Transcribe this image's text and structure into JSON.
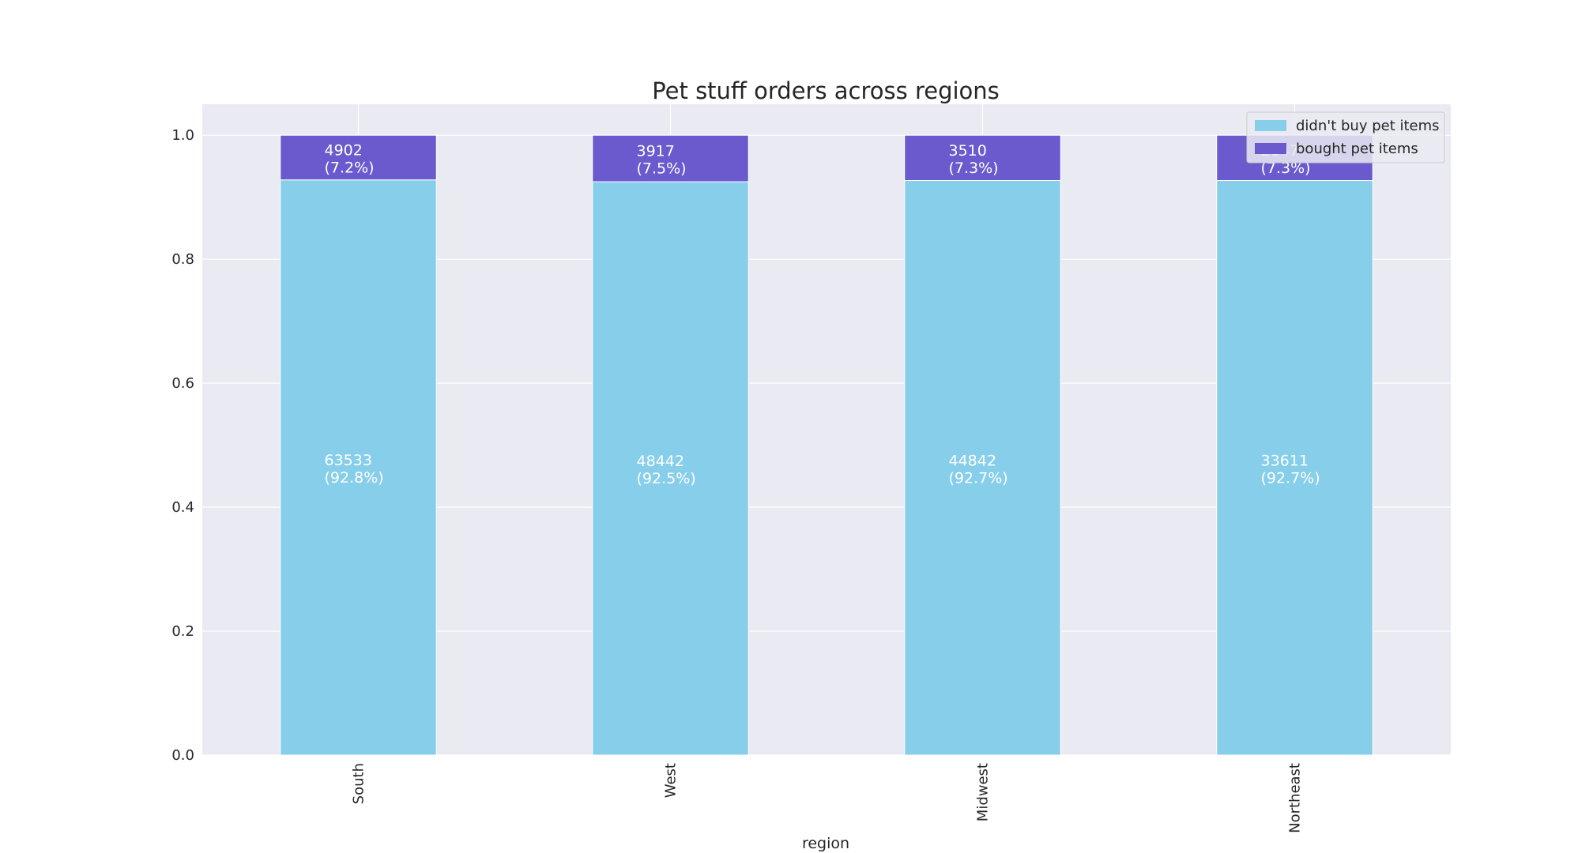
{
  "chart_data": {
    "type": "bar",
    "stacked": true,
    "title": "Pet stuff orders across regions",
    "xlabel": "region",
    "ylabel": "",
    "ylim": [
      0,
      1.05
    ],
    "yticks": [
      "0.0",
      "0.2",
      "0.4",
      "0.6",
      "0.8",
      "1.0"
    ],
    "categories": [
      "South",
      "West",
      "Midwest",
      "Northeast"
    ],
    "grid": true,
    "legend_position": "top-right",
    "series": [
      {
        "name": "didn't buy pet items",
        "color": "#87ceeb",
        "values": [
          0.928,
          0.925,
          0.927,
          0.927
        ],
        "counts": [
          "63533",
          "48442",
          "44842",
          "33611"
        ],
        "percents": [
          "(92.8%)",
          "(92.5%)",
          "(92.7%)",
          "(92.7%)"
        ]
      },
      {
        "name": "bought pet items",
        "color": "#6a5acd",
        "values": [
          0.072,
          0.075,
          0.073,
          0.073
        ],
        "counts": [
          "4902",
          "3917",
          "3510",
          "2647"
        ],
        "percents": [
          "(7.2%)",
          "(7.5%)",
          "(7.3%)",
          "(7.3%)"
        ]
      }
    ]
  }
}
